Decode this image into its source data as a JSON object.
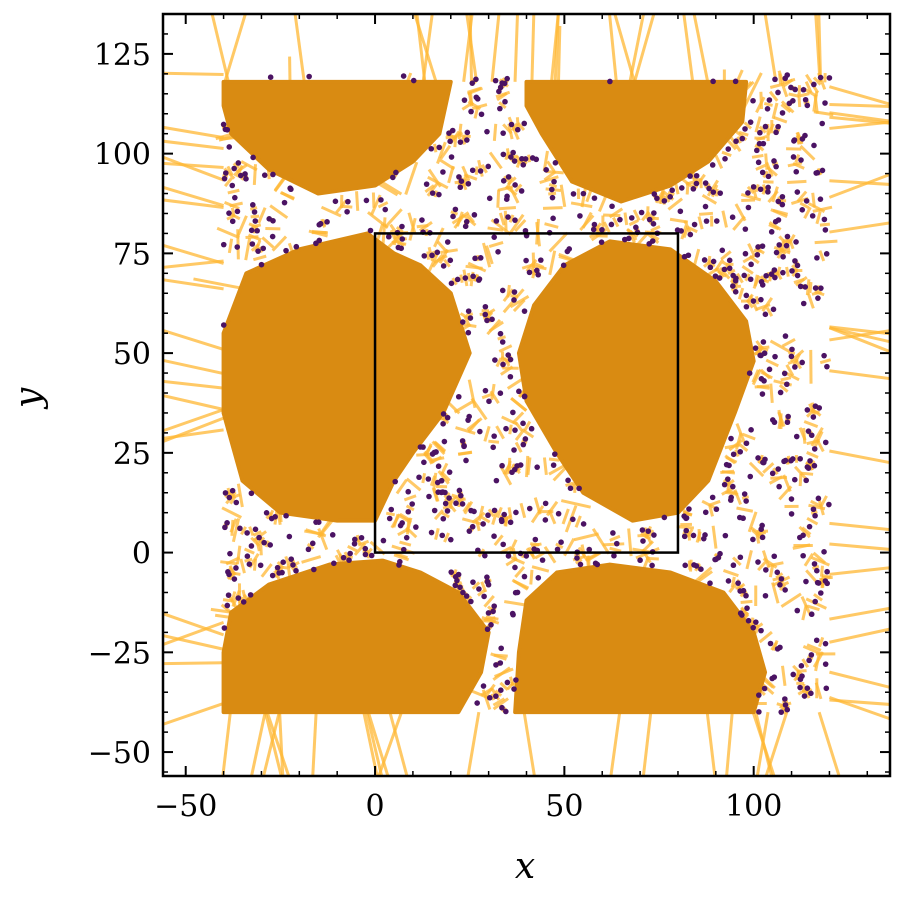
{
  "chart_data": {
    "type": "scatter",
    "title": "",
    "xlabel": "x",
    "ylabel": "y",
    "xlim": [
      -56,
      136
    ],
    "ylim": [
      -56,
      135
    ],
    "xticks": [
      -50,
      0,
      50,
      100
    ],
    "yticks": [
      -50,
      -25,
      0,
      25,
      50,
      75,
      100,
      125
    ],
    "xtick_labels": [
      "−50",
      "0",
      "50",
      "100"
    ],
    "ytick_labels": [
      "−50",
      "−25",
      "0",
      "25",
      "50",
      "75",
      "100",
      "125"
    ],
    "grid": false,
    "legend": "none",
    "box": {
      "x0": 0,
      "x1": 80,
      "y0": 0,
      "y1": 80
    },
    "scatter_region": {
      "x": [
        -40,
        120
      ],
      "y": [
        -40,
        120
      ],
      "count": 750,
      "seed": 7
    },
    "dense_clusters": [
      {
        "name": "top-left",
        "outline": [
          [
            -40,
            118
          ],
          [
            20,
            118
          ],
          [
            17,
            105
          ],
          [
            10,
            98
          ],
          [
            0,
            92
          ],
          [
            -15,
            90
          ],
          [
            -28,
            96
          ],
          [
            -38,
            105
          ],
          [
            -40,
            112
          ]
        ]
      },
      {
        "name": "top-right",
        "outline": [
          [
            40,
            118
          ],
          [
            98,
            118
          ],
          [
            97,
            108
          ],
          [
            88,
            98
          ],
          [
            78,
            92
          ],
          [
            65,
            88
          ],
          [
            52,
            93
          ],
          [
            44,
            105
          ],
          [
            40,
            112
          ]
        ]
      },
      {
        "name": "middle-left",
        "outline": [
          [
            -2,
            80
          ],
          [
            -20,
            76
          ],
          [
            -34,
            70
          ],
          [
            -40,
            55
          ],
          [
            -40,
            35
          ],
          [
            -35,
            18
          ],
          [
            -25,
            10
          ],
          [
            -10,
            8
          ],
          [
            0,
            8
          ],
          [
            5,
            18
          ],
          [
            10,
            25
          ],
          [
            18,
            35
          ],
          [
            25,
            50
          ],
          [
            20,
            65
          ],
          [
            12,
            72
          ],
          [
            5,
            75
          ]
        ]
      },
      {
        "name": "middle-right",
        "outline": [
          [
            62,
            78
          ],
          [
            50,
            72
          ],
          [
            42,
            62
          ],
          [
            38,
            50
          ],
          [
            40,
            38
          ],
          [
            48,
            25
          ],
          [
            55,
            15
          ],
          [
            68,
            8
          ],
          [
            80,
            10
          ],
          [
            88,
            18
          ],
          [
            95,
            35
          ],
          [
            100,
            48
          ],
          [
            98,
            58
          ],
          [
            90,
            68
          ],
          [
            78,
            76
          ]
        ]
      },
      {
        "name": "bottom-left",
        "outline": [
          [
            -40,
            -40
          ],
          [
            22,
            -40
          ],
          [
            28,
            -30
          ],
          [
            30,
            -20
          ],
          [
            22,
            -10
          ],
          [
            12,
            -5
          ],
          [
            2,
            -2
          ],
          [
            -12,
            -3
          ],
          [
            -28,
            -8
          ],
          [
            -38,
            -15
          ],
          [
            -40,
            -25
          ]
        ]
      },
      {
        "name": "bottom-right",
        "outline": [
          [
            37,
            -40
          ],
          [
            100,
            -40
          ],
          [
            103,
            -30
          ],
          [
            100,
            -20
          ],
          [
            92,
            -10
          ],
          [
            78,
            -5
          ],
          [
            62,
            -3
          ],
          [
            48,
            -5
          ],
          [
            40,
            -12
          ],
          [
            38,
            -25
          ]
        ]
      }
    ],
    "colors": {
      "cluster": "#d98b12",
      "edge": "#ffb733",
      "point": "#4b1363",
      "box": "#000000"
    }
  }
}
